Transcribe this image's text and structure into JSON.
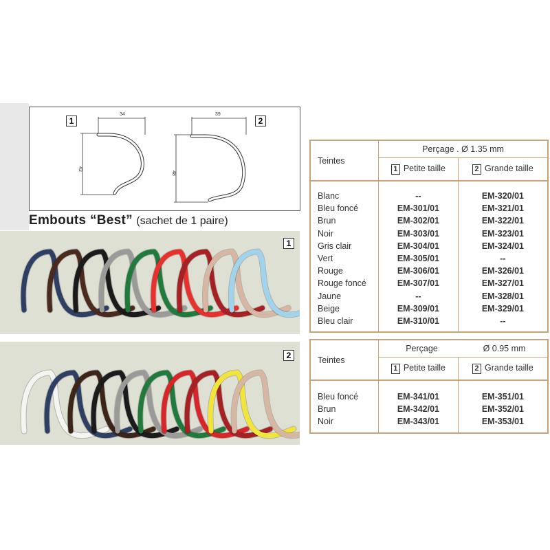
{
  "diagram": {
    "small_label": "1",
    "large_label": "2",
    "small_width": "34",
    "small_height": "43",
    "large_width": "39",
    "large_height": "48"
  },
  "title": {
    "main": "Embouts “Best”",
    "sub": "(sachet de 1 paire)"
  },
  "photos": [
    {
      "label": "1",
      "colors": [
        "#2f3e63",
        "#4a2a1f",
        "#1c1a1a",
        "#9a9a98",
        "#1f7a3c",
        "#e8312e",
        "#a52124",
        "#d7b6a3",
        "#9fd3ee"
      ]
    },
    {
      "label": "2",
      "colors": [
        "#f4f4f2",
        "#2f3e63",
        "#3b2418",
        "#1c1a1a",
        "#9a9a98",
        "#1f7a3c",
        "#d7262a",
        "#a52124",
        "#f2e53a",
        "#d7b6a3"
      ]
    }
  ],
  "table1": {
    "teintes": "Teintes",
    "percage": "Perçage . Ø 1.35 mm",
    "col1_num": "1",
    "col1": "Petite taille",
    "col2_num": "2",
    "col2": "Grande taille",
    "rows": [
      [
        "Blanc",
        "--",
        "EM-320/01"
      ],
      [
        "Bleu foncé",
        "EM-301/01",
        "EM-321/01"
      ],
      [
        "Brun",
        "EM-302/01",
        "EM-322/01"
      ],
      [
        "Noir",
        "EM-303/01",
        "EM-323/01"
      ],
      [
        "Gris clair",
        "EM-304/01",
        "EM-324/01"
      ],
      [
        "Vert",
        "EM-305/01",
        "--"
      ],
      [
        "Rouge",
        "EM-306/01",
        "EM-326/01"
      ],
      [
        "Rouge foncé",
        "EM-307/01",
        "EM-327/01"
      ],
      [
        "Jaune",
        "--",
        "EM-328/01"
      ],
      [
        "Beige",
        "EM-309/01",
        "EM-329/01"
      ],
      [
        "Bleu clair",
        "EM-310/01",
        "--"
      ]
    ]
  },
  "table2": {
    "teintes": "Teintes",
    "percage": "Perçage",
    "diameter": "Ø 0.95 mm",
    "col1_num": "1",
    "col1": "Petite taille",
    "col2_num": "2",
    "col2": "Grande taille",
    "rows": [
      [
        "Bleu foncé",
        "EM-341/01",
        "EM-351/01"
      ],
      [
        "Brun",
        "EM-342/01",
        "EM-352/01"
      ],
      [
        "Noir",
        "EM-343/01",
        "EM-353/01"
      ]
    ]
  }
}
